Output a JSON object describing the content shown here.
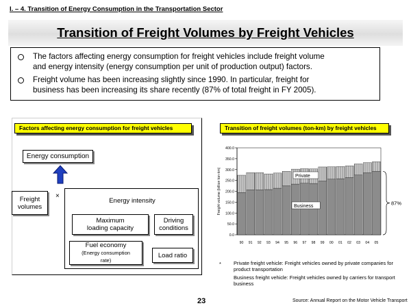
{
  "section_header": "I. – 4. Transition of Energy Consumption in the Transportation Sector",
  "main_title": "Transition of Freight Volumes by Freight Vehicles",
  "bullets": [
    {
      "line1": "The factors affecting energy consumption for freight vehicles include freight volume",
      "line2": "and energy intensity (energy consumption per unit of production output) factors."
    },
    {
      "line1": "Freight volume has been increasing slightly since 1990. In particular, freight for",
      "line2": "business has been increasing its share recently (87% of total freight in FY 2005)."
    }
  ],
  "left_panel": {
    "header": "Factors affecting energy consumption for freight vehicles",
    "energy_consumption": "Energy consumption",
    "freight_volumes_line1": "Freight",
    "freight_volumes_line2": "volumes",
    "multiply": "×",
    "energy_intensity": "Energy intensity",
    "max_loading_line1": "Maximum",
    "max_loading_line2": "loading capacity",
    "driving_line1": "Driving",
    "driving_line2": "conditions",
    "fuel_economy_line1": "Fuel economy",
    "fuel_economy_line2": "(Energy consumption",
    "fuel_economy_line3": "rate)",
    "load_ratio": "Load ratio",
    "arrow_color": "#1f3fbf"
  },
  "right_panel": {
    "header": "Transition of freight volumes (ton-km) by freight vehicles"
  },
  "chart_data": {
    "type": "bar",
    "stacked": true,
    "categories": [
      "90",
      "91",
      "92",
      "93",
      "94",
      "95",
      "96",
      "97",
      "98",
      "99",
      "00",
      "01",
      "02",
      "03",
      "04",
      "05"
    ],
    "series": [
      {
        "name": "Business",
        "values": [
          194,
          207,
          207,
          208,
          214,
          225,
          233,
          237,
          236,
          247,
          256,
          258,
          263,
          275,
          285,
          292
        ]
      },
      {
        "name": "Private",
        "values": [
          80,
          79,
          79,
          72,
          70,
          67,
          69,
          67,
          67,
          65,
          57,
          56,
          54,
          51,
          47,
          44
        ]
      }
    ],
    "ylabel": "Freight volume (billion ton-km)",
    "ylim": [
      0,
      400
    ],
    "yticks": [
      "0.0",
      "50.0",
      "100.0",
      "150.0",
      "200.0",
      "250.0",
      "300.0",
      "350.0",
      "400.0"
    ],
    "annotation": "87%",
    "colors": {
      "business": "#8c8c8c",
      "private": "#d0d0d0"
    }
  },
  "notes": {
    "star": "*",
    "private_line1": "Private freight vehicle: Freight vehicles owned by private companies for",
    "private_line2": "product transportation",
    "business_line1": "Business freight vehicle: Freight vehicles owned by carriers for transport",
    "business_line2": "business"
  },
  "page_number": "23",
  "source": "Source: Annual Report on the Motor Vehicle Transport"
}
